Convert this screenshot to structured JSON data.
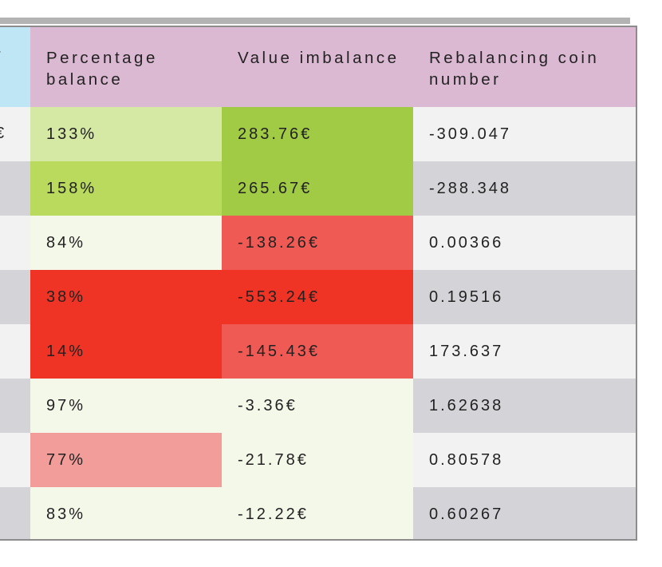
{
  "table": {
    "headers": [
      {
        "key": "prev",
        "label": ""
      },
      {
        "key": "percentage_balance",
        "label": "Percentage balance"
      },
      {
        "key": "value_imbalance",
        "label": "Value imbalance"
      },
      {
        "key": "rebalancing_coin_number",
        "label": "Rebalancing coin number"
      }
    ],
    "prev_header_fragment": "r",
    "prev_row0_fragment": "€",
    "rows": [
      {
        "percentage_balance": "133%",
        "value_imbalance": "283.76€",
        "rebalancing_coin_number": "-309.047",
        "pct_color": "#d5e8a4",
        "val_color": "#a1cb44",
        "row_bg": "#f2f2f2"
      },
      {
        "percentage_balance": "158%",
        "value_imbalance": "265.67€",
        "rebalancing_coin_number": "-288.348",
        "pct_color": "#b9da5d",
        "val_color": "#a1cb44",
        "row_bg": "#d4d3d8"
      },
      {
        "percentage_balance": "84%",
        "value_imbalance": "-138.26€",
        "rebalancing_coin_number": "0.00366",
        "pct_color": "#f4f8e9",
        "val_color": "#ef5b54",
        "row_bg": "#f2f2f2"
      },
      {
        "percentage_balance": "38%",
        "value_imbalance": "-553.24€",
        "rebalancing_coin_number": "0.19516",
        "pct_color": "#ef3325",
        "val_color": "#ef3325",
        "row_bg": "#d4d3d8"
      },
      {
        "percentage_balance": "14%",
        "value_imbalance": "-145.43€",
        "rebalancing_coin_number": "173.637",
        "pct_color": "#ef3325",
        "val_color": "#ef5b54",
        "row_bg": "#f2f2f2"
      },
      {
        "percentage_balance": "97%",
        "value_imbalance": "-3.36€",
        "rebalancing_coin_number": "1.62638",
        "pct_color": "#f4f8e9",
        "val_color": "#f4f8e9",
        "row_bg": "#d4d3d8"
      },
      {
        "percentage_balance": "77%",
        "value_imbalance": "-21.78€",
        "rebalancing_coin_number": "0.80578",
        "pct_color": "#f29d9a",
        "val_color": "#f4f8e9",
        "row_bg": "#f2f2f2"
      },
      {
        "percentage_balance": "83%",
        "value_imbalance": "-12.22€",
        "rebalancing_coin_number": "0.60267",
        "pct_color": "#f4f8e9",
        "val_color": "#f4f8e9",
        "row_bg": "#d4d3d8"
      }
    ]
  },
  "colors": {
    "header_bg": "#dcb9d3",
    "prev_header_bg": "#bfe6f5",
    "top_shadow": "#b3b3b3"
  }
}
